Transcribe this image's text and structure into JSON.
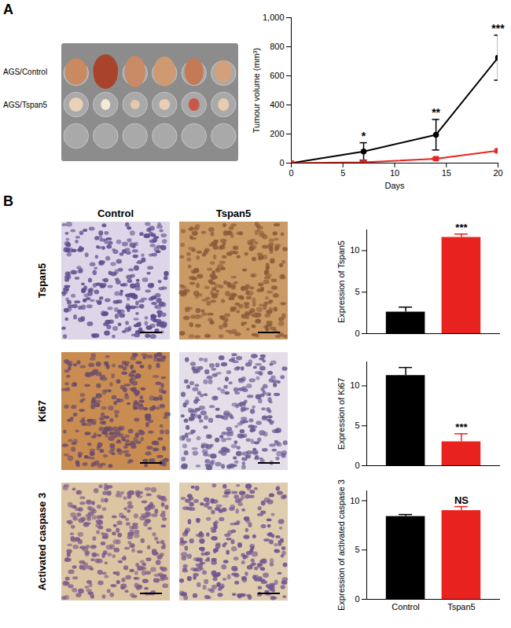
{
  "figure": {
    "panels": [
      "A",
      "B"
    ],
    "photo_labels": [
      "AGS/Control",
      "AGS/Tspan5"
    ],
    "column_labels": [
      "Control",
      "Tspan5"
    ],
    "row_labels": [
      "Tspan5",
      "Ki67",
      "Activated caspase 3"
    ]
  },
  "chart_data": [
    {
      "type": "line",
      "x_label": "Days",
      "y_label": "Tumour volume (mm³)",
      "x": [
        0,
        7,
        14,
        20
      ],
      "xlim": [
        0,
        20
      ],
      "xticks": [
        0,
        5,
        10,
        15,
        20
      ],
      "ylim": [
        0,
        1000
      ],
      "yticks": [
        0,
        200,
        400,
        600,
        800,
        1000
      ],
      "series": [
        {
          "color": "#000000",
          "marker": "circle",
          "values": [
            0,
            80,
            195,
            725
          ],
          "errors": [
            0,
            60,
            105,
            155
          ]
        },
        {
          "color": "#e8231f",
          "marker": "square",
          "values": [
            0,
            5,
            30,
            85
          ],
          "errors": [
            0,
            5,
            8,
            10
          ]
        }
      ],
      "annotations": [
        {
          "x": 7,
          "text": "*"
        },
        {
          "x": 14,
          "text": "**"
        },
        {
          "x": 20,
          "text": "***"
        }
      ]
    },
    {
      "type": "bar",
      "y_label": "Expression of Tspan5",
      "categories": [
        null,
        null
      ],
      "values": [
        2.6,
        11.6
      ],
      "errors": [
        0.6,
        0.4
      ],
      "colors": [
        "#000000",
        "#e8231f"
      ],
      "ylim": [
        0,
        12.5
      ],
      "yticks": [
        0,
        5,
        10
      ],
      "tick_labels": "y",
      "annotations": [
        {
          "index": 1,
          "text": "***"
        }
      ]
    },
    {
      "type": "bar",
      "y_label": "Expression of Ki67",
      "categories": [
        null,
        null
      ],
      "values": [
        11.3,
        3.0
      ],
      "errors": [
        1.0,
        1.0
      ],
      "colors": [
        "#000000",
        "#e8231f"
      ],
      "ylim": [
        0,
        13
      ],
      "yticks": [
        0,
        5,
        10
      ],
      "tick_labels": "y",
      "annotations": [
        {
          "index": 1,
          "text": "***"
        }
      ]
    },
    {
      "type": "bar",
      "y_label": "Expression of activated caspase 3",
      "categories": [
        "Control",
        "Tspan5"
      ],
      "values": [
        8.4,
        9.0
      ],
      "errors": [
        0.2,
        0.4
      ],
      "colors": [
        "#000000",
        "#e8231f"
      ],
      "ylim": [
        0,
        11
      ],
      "yticks": [
        0,
        5,
        10
      ],
      "annotations": [
        {
          "index": 1,
          "text": "NS"
        }
      ]
    }
  ]
}
